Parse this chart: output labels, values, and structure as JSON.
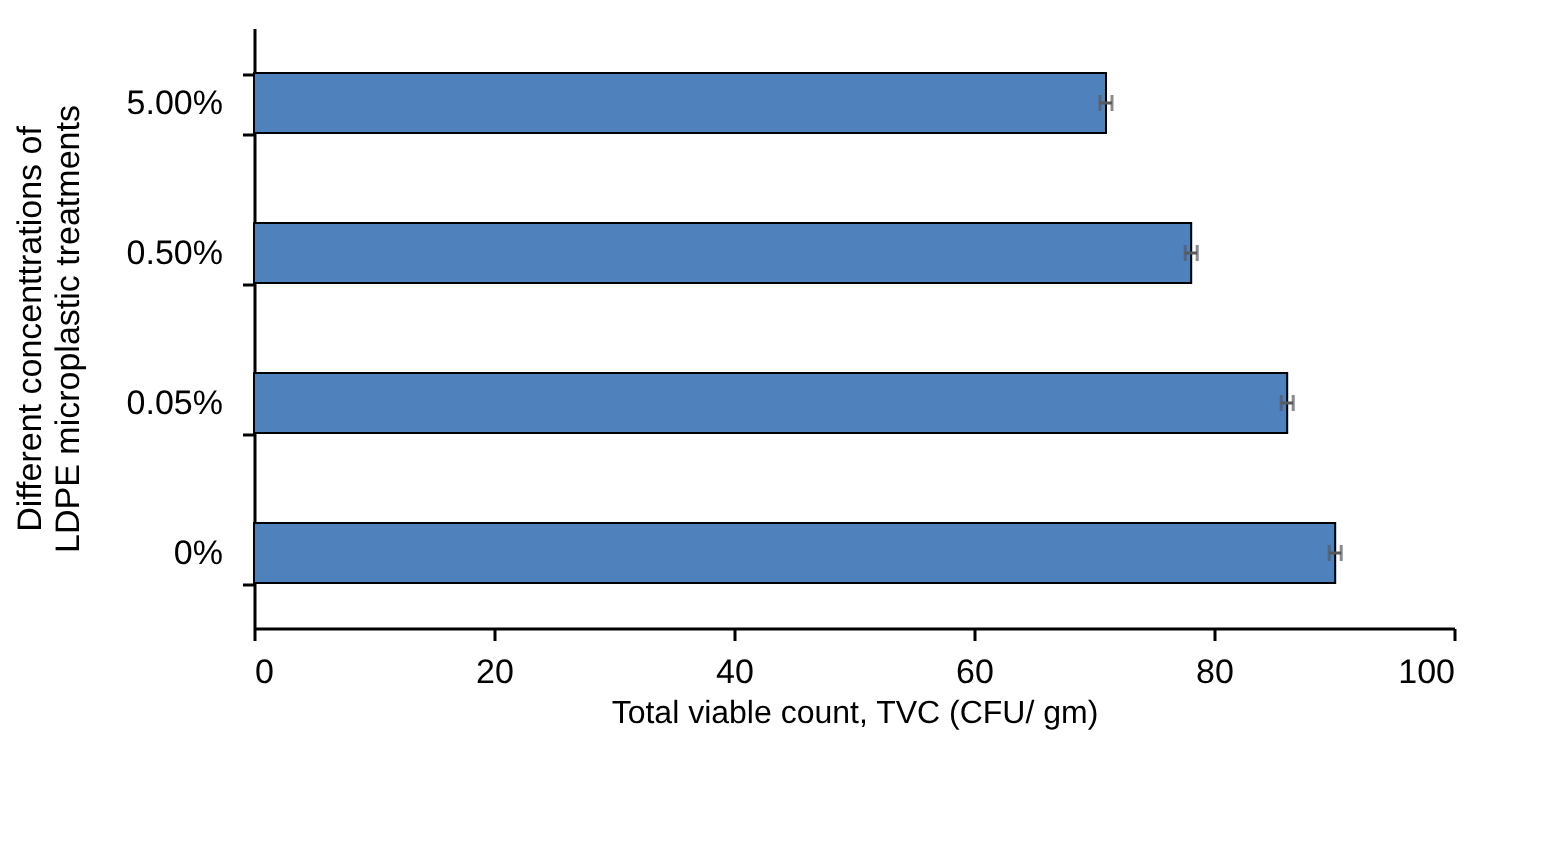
{
  "chart_data": {
    "type": "bar",
    "orientation": "horizontal",
    "categories": [
      "5.00%",
      "0.50%",
      "0.05%",
      "0%"
    ],
    "values": [
      71.0,
      78.1,
      86.1,
      90.1
    ],
    "errors": [
      0.5,
      0.5,
      0.5,
      0.5
    ],
    "color": "#4f81bd",
    "xlim": [
      0,
      100
    ],
    "xticks": [
      0,
      20,
      40,
      60,
      80,
      100
    ],
    "xlabel": "Total viable count, TVC (CFU/ gm)",
    "ylabel": "Different concenttrations of\nLDPE microplastic treatments",
    "grid": false
  }
}
